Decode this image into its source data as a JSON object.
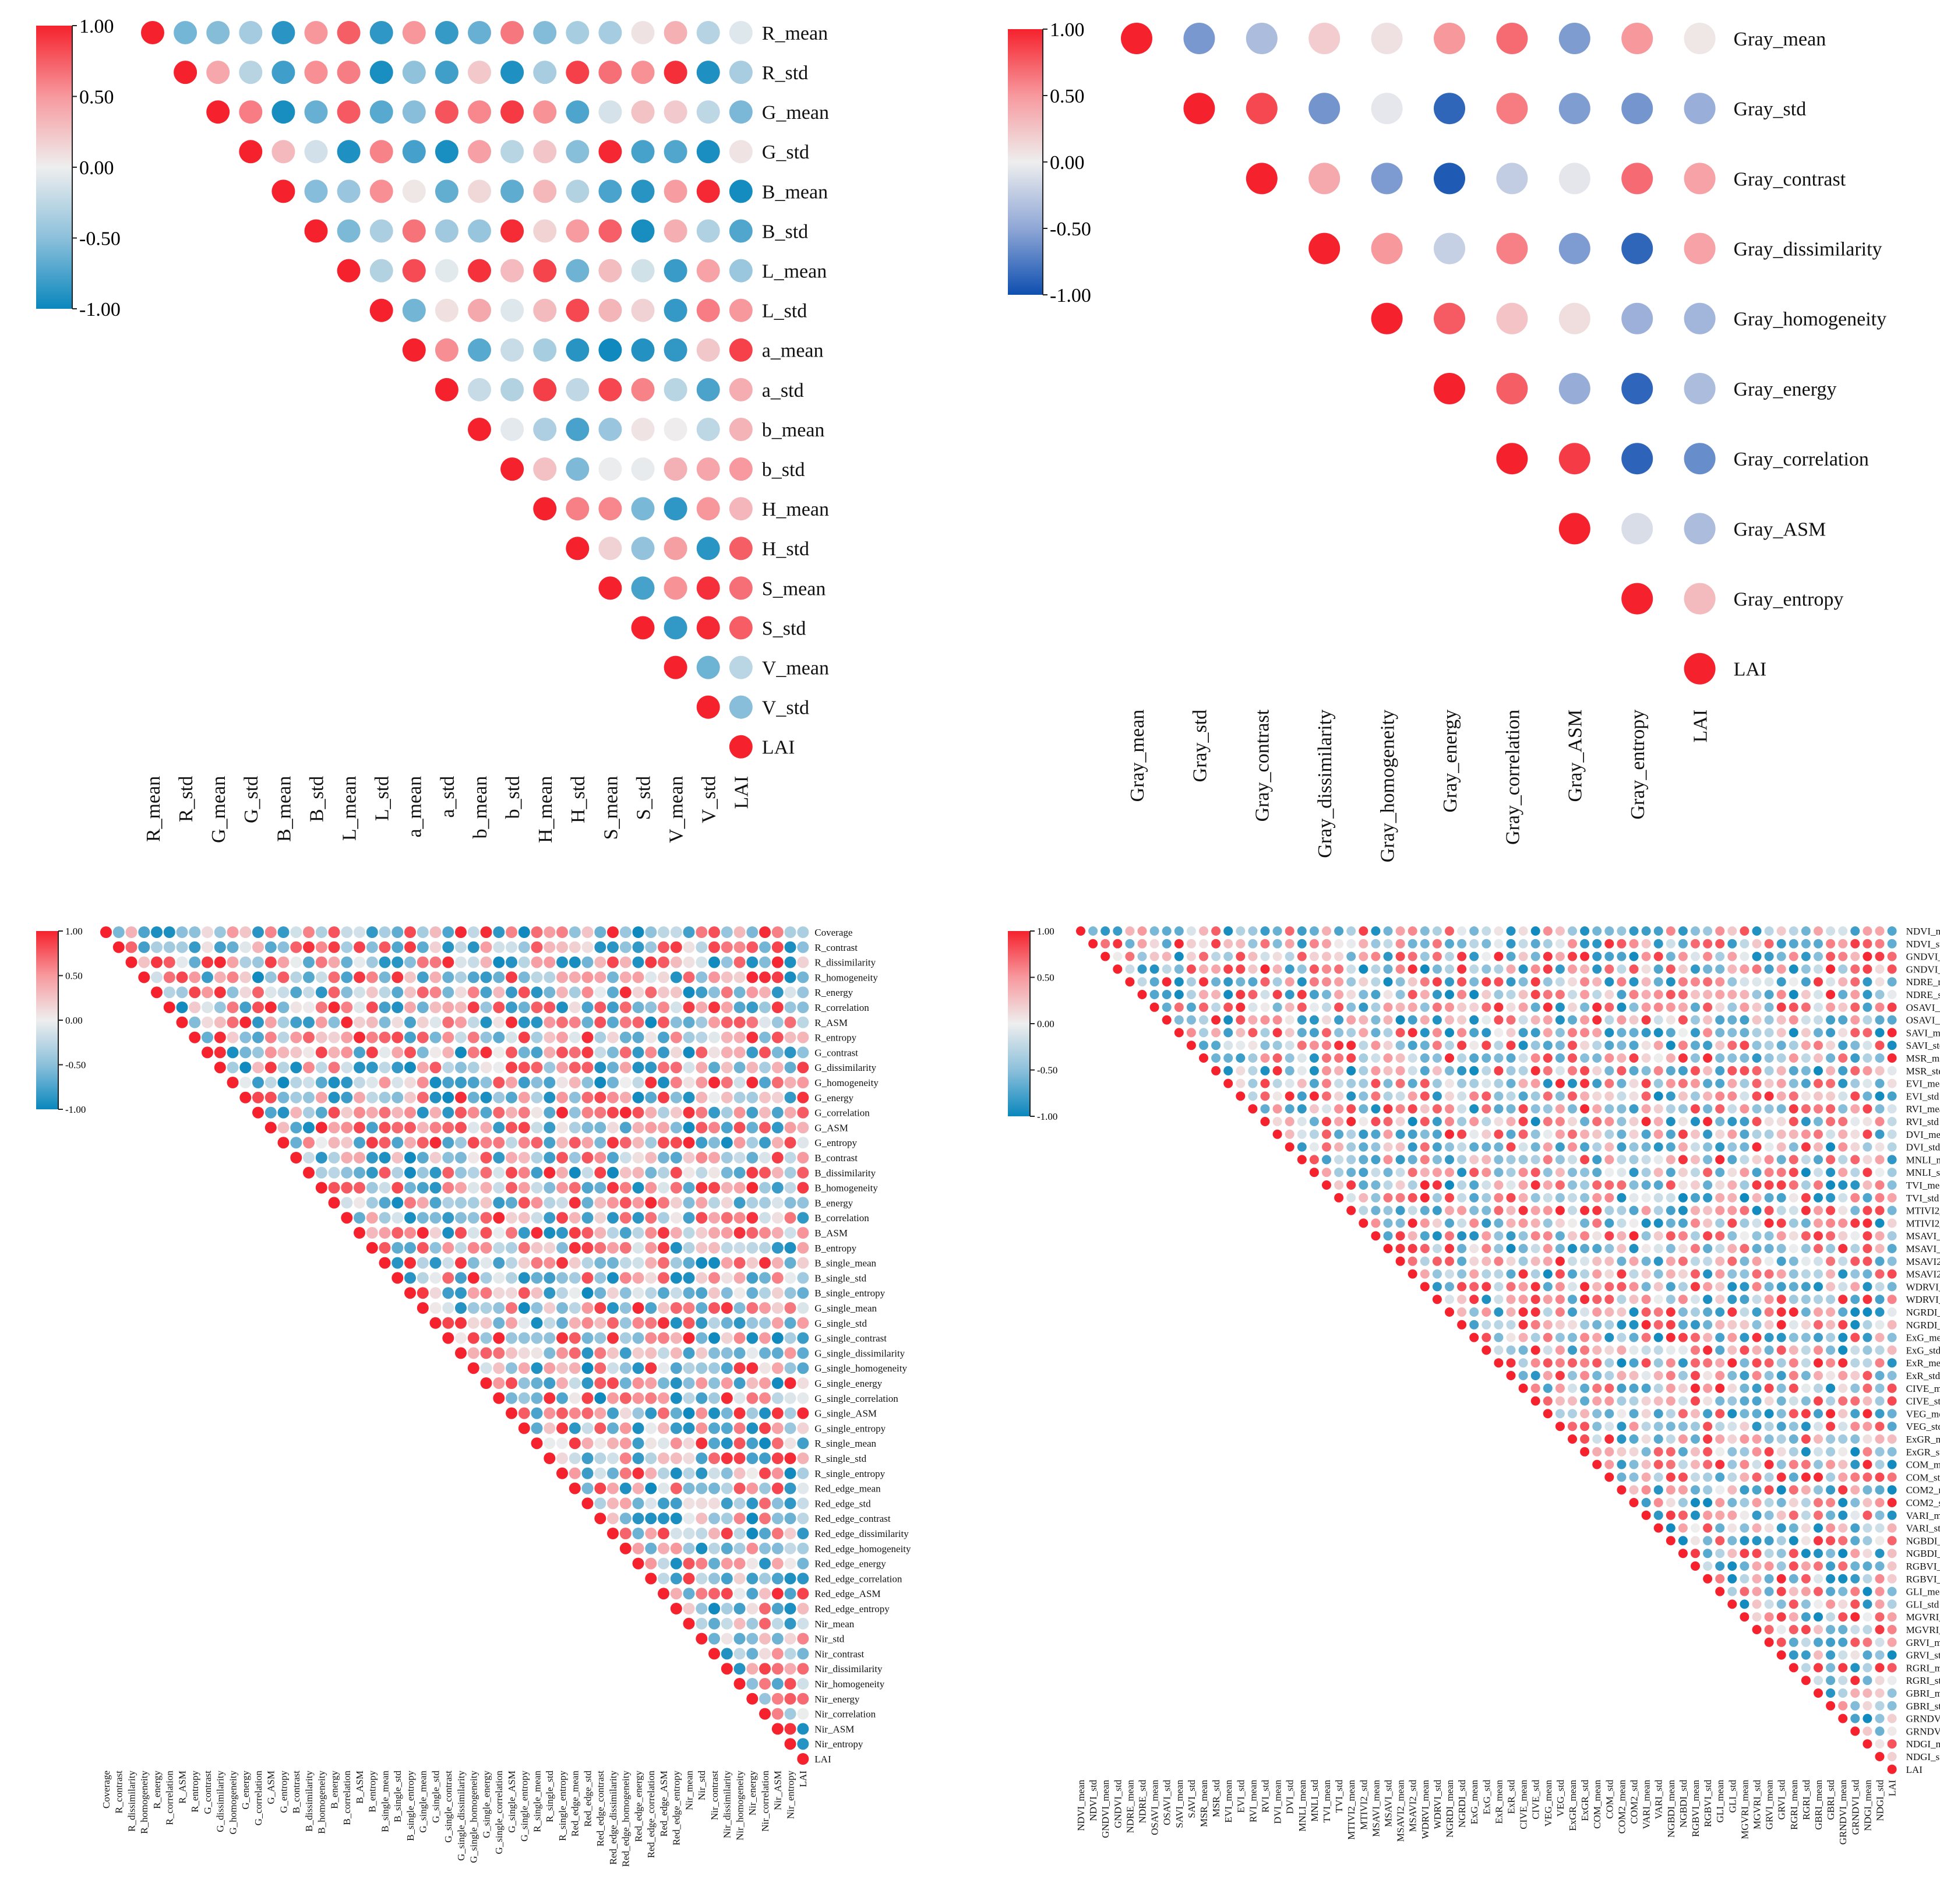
{
  "chart_data": [
    {
      "type": "heatmap",
      "style": "upper-triangle correlation circles",
      "panel": "top-left",
      "palette": "red-white-blue (cyan-blue negative)",
      "colorbar": {
        "min": -1.0,
        "max": 1.0,
        "ticks": [
          "1.00",
          "0.50",
          "0.00",
          "-0.50",
          "-1.00"
        ]
      },
      "variables": [
        "R_mean",
        "R_std",
        "G_mean",
        "G_std",
        "B_mean",
        "B_std",
        "L_mean",
        "L_std",
        "a_mean",
        "a_std",
        "b_mean",
        "b_std",
        "H_mean",
        "H_std",
        "S_mean",
        "S_std",
        "V_mean",
        "V_std",
        "LAI"
      ],
      "seed": 11
    },
    {
      "type": "heatmap",
      "style": "upper-triangle correlation circles",
      "panel": "top-right",
      "palette": "red-white-navy blue",
      "colorbar": {
        "min": -1.0,
        "max": 1.0,
        "ticks": [
          "1.00",
          "0.50",
          "0.00",
          "-0.50",
          "-1.00"
        ]
      },
      "variables": [
        "Gray_mean",
        "Gray_std",
        "Gray_contrast",
        "Gray_dissimilarity",
        "Gray_homogeneity",
        "Gray_energy",
        "Gray_correlation",
        "Gray_ASM",
        "Gray_entropy",
        "LAI"
      ],
      "lai_correlations": [
        0.05,
        -0.45,
        0.45,
        0.45,
        -0.4,
        -0.35,
        -0.65,
        -0.35,
        0.3
      ],
      "seed": 23
    },
    {
      "type": "heatmap",
      "style": "upper-triangle correlation circles",
      "panel": "bottom-left",
      "palette": "red-white-blue (cyan-blue negative)",
      "colorbar": {
        "min": -1.0,
        "max": 1.0,
        "ticks": [
          "1.00",
          "0.50",
          "0.00",
          "-0.50",
          "-1.00"
        ]
      },
      "variables": [
        "Coverage",
        "R_contrast",
        "R_dissimilarity",
        "R_homogeneity",
        "R_energy",
        "R_correlation",
        "R_ASM",
        "R_entropy",
        "G_contrast",
        "G_dissimilarity",
        "G_homogeneity",
        "G_energy",
        "G_correlation",
        "G_ASM",
        "G_entropy",
        "B_contrast",
        "B_dissimilarity",
        "B_homogeneity",
        "B_energy",
        "B_correlation",
        "B_ASM",
        "B_entropy",
        "B_single_mean",
        "B_single_std",
        "B_single_entropy",
        "G_single_mean",
        "G_single_std",
        "G_single_contrast",
        "G_single_dissimilarity",
        "G_single_homogeneity",
        "G_single_energy",
        "G_single_correlation",
        "G_single_ASM",
        "G_single_entropy",
        "R_single_mean",
        "R_single_std",
        "R_single_entropy",
        "Red_edge_mean",
        "Red_edge_std",
        "Red_edge_contrast",
        "Red_edge_dissimilarity",
        "Red_edge_homogeneity",
        "Red_edge_energy",
        "Red_edge_correlation",
        "Red_edge_ASM",
        "Red_edge_entropy",
        "Nir_mean",
        "Nir_std",
        "Nir_contrast",
        "Nir_dissimilarity",
        "Nir_homogeneity",
        "Nir_energy",
        "Nir_correlation",
        "Nir_ASM",
        "Nir_entropy",
        "LAI"
      ],
      "seed": 37
    },
    {
      "type": "heatmap",
      "style": "upper-triangle correlation circles",
      "panel": "bottom-right",
      "palette": "red-white-blue (cyan-blue negative)",
      "colorbar": {
        "min": -1.0,
        "max": 1.0,
        "ticks": [
          "1.00",
          "0.50",
          "0.00",
          "-0.50",
          "-1.00"
        ]
      },
      "variables": [
        "NDVI_mean",
        "NDVI_std",
        "GNDVI_mean",
        "GNDVI_std",
        "NDRE_mean",
        "NDRE_std",
        "OSAVI_mean",
        "OSAVI_std",
        "SAVI_mean",
        "SAVI_std",
        "MSR_mean",
        "MSR_std",
        "EVI_mean",
        "EVI_std",
        "RVI_mean",
        "RVI_std",
        "DVI_mean",
        "DVI_std",
        "MNLI_mean",
        "MNLI_std",
        "TVI_mean",
        "TVI_std",
        "MTIVI2_mean",
        "MTIVI2_std",
        "MSAVI_mean",
        "MSAVI_std",
        "MSAVI2_mean",
        "MSAVI2_std",
        "WDRVI_mean",
        "WDRVI_std",
        "NGRDI_mean",
        "NGRDI_std",
        "ExG_mean",
        "ExG_std",
        "ExR_mean",
        "ExR_std",
        "CIVE_mean",
        "CIVE_std",
        "VEG_mean",
        "VEG_std",
        "ExGR_mean",
        "ExGR_std",
        "COM_mean",
        "COM_std",
        "COM2_mean",
        "COM2_std",
        "VARI_mean",
        "VARI_std",
        "NGBDI_mean",
        "NGBDI_std",
        "RGBVI_mean",
        "RGBVI_std",
        "GLI_mean",
        "GLI_std",
        "MGVRI_mean",
        "MGVRI_std",
        "GRVI_mean",
        "GRVI_std",
        "RGRI_mean",
        "RGRI_std",
        "GBRI_mean",
        "GBRI_std",
        "GRNDVI_mean",
        "GRNDVI_std",
        "NDGI_mean",
        "NDGI_std",
        "LAI"
      ],
      "seed": 53
    }
  ]
}
